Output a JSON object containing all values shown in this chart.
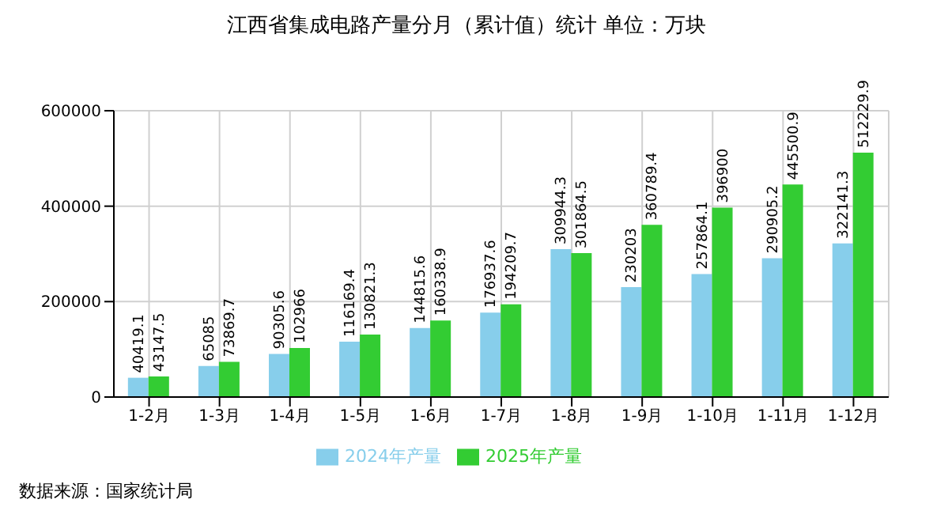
{
  "chart_data": {
    "type": "bar",
    "title": "江西省集成电路产量分月（累计值）统计 单位：万块",
    "categories": [
      "1-2月",
      "1-3月",
      "1-4月",
      "1-5月",
      "1-6月",
      "1-7月",
      "1-8月",
      "1-9月",
      "1-10月",
      "1-11月",
      "1-12月"
    ],
    "series": [
      {
        "name": "2024年产量",
        "color": "#87ceeb",
        "values": [
          40419.1,
          65085,
          90305.6,
          116169.4,
          144815.6,
          176937.6,
          309944.3,
          230203,
          257864.1,
          290905.2,
          322141.3
        ]
      },
      {
        "name": "2025年产量",
        "color": "#33cc33",
        "values": [
          43147.5,
          73869.7,
          102966,
          130821.3,
          160338.9,
          194209.7,
          301864.5,
          360789.4,
          396900,
          445500.9,
          512229.9
        ]
      }
    ],
    "ylim": [
      0,
      600000
    ],
    "yticks": [
      0,
      200000,
      400000,
      600000
    ],
    "grid": true,
    "legend": "bottom",
    "data_labels": true,
    "annotations": [
      "数据来源：国家统计局"
    ]
  }
}
